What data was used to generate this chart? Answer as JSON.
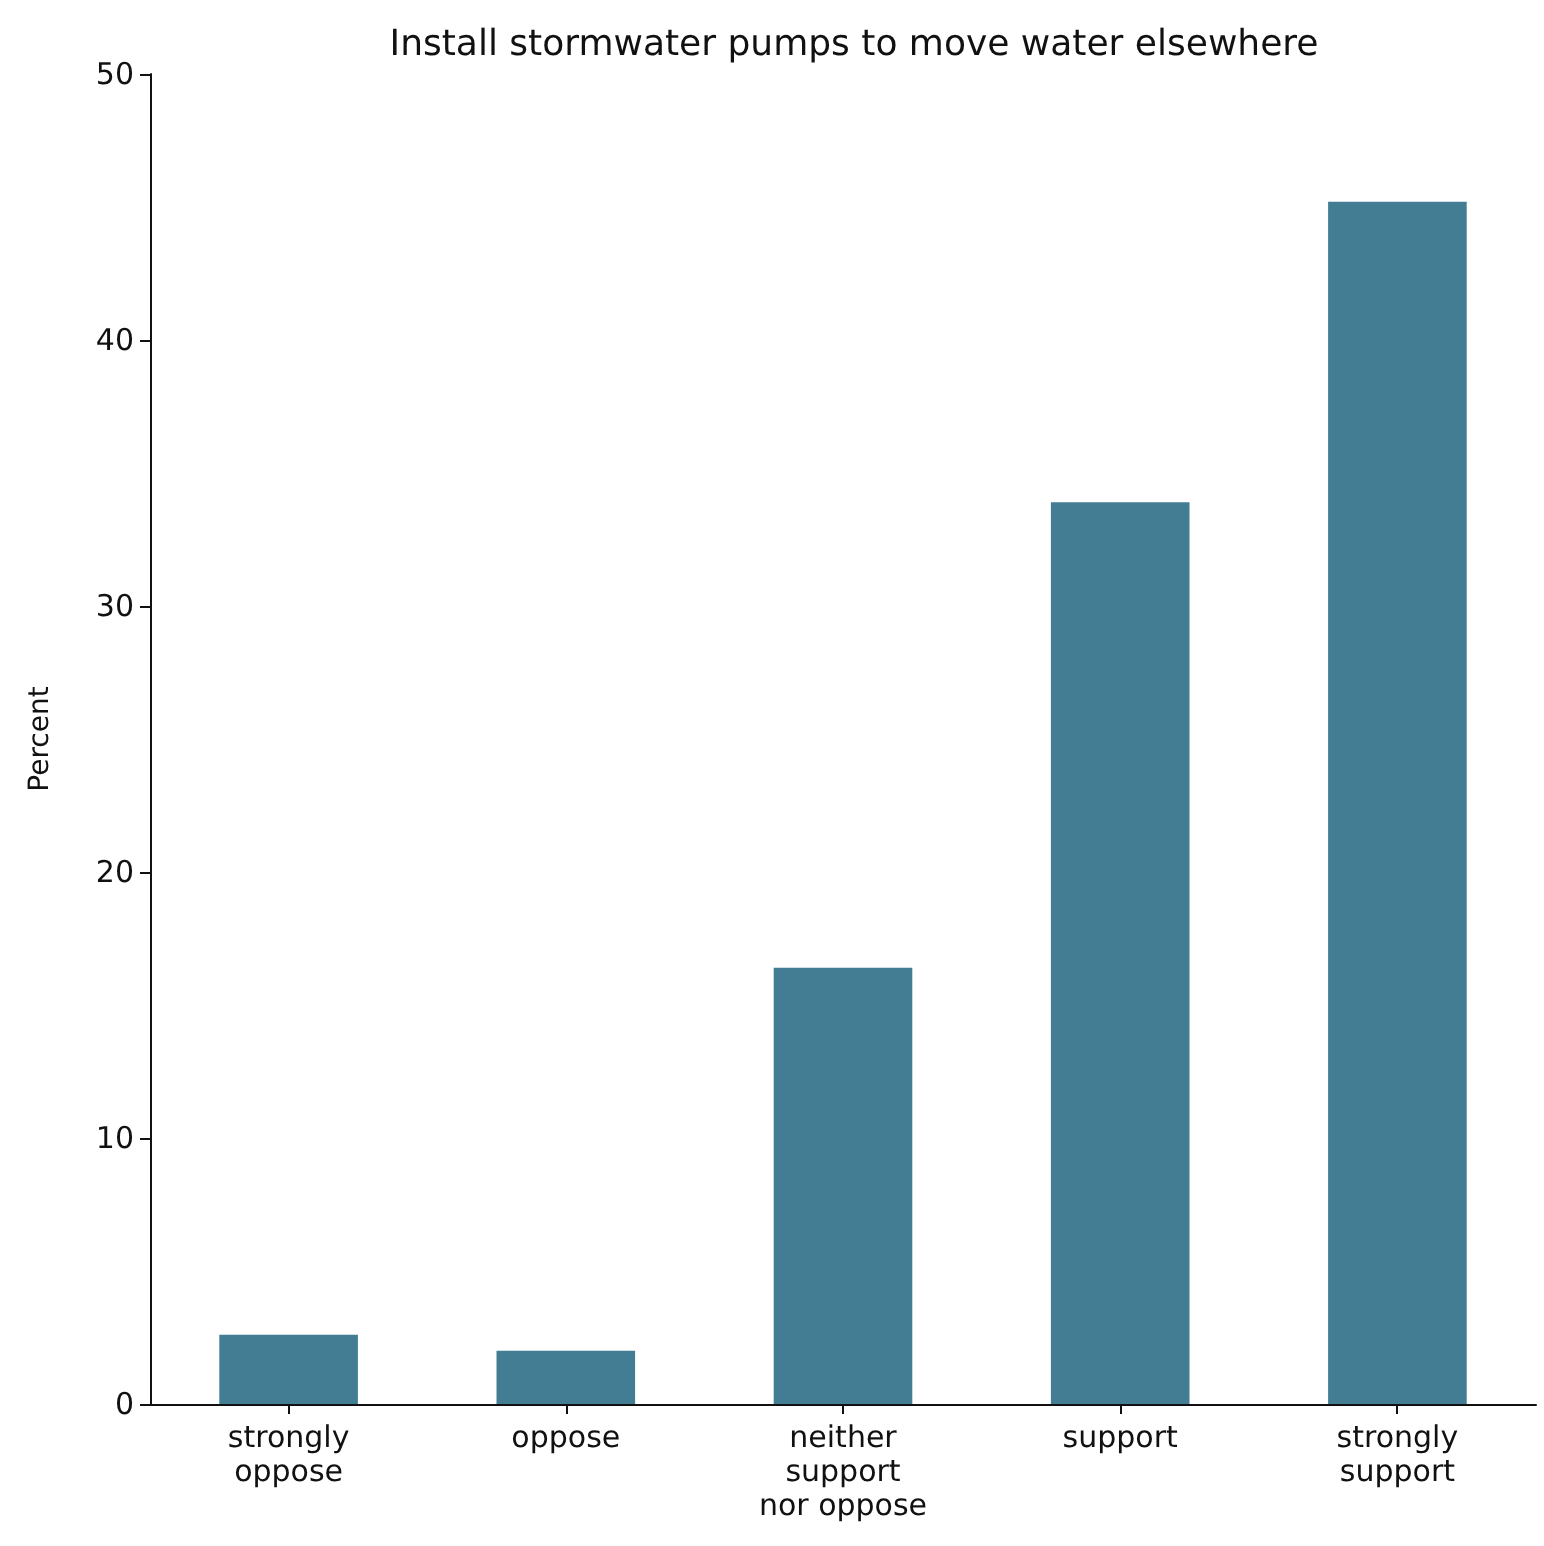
{
  "chart_data": {
    "type": "bar",
    "title": "Install stormwater pumps to move water elsewhere",
    "ylabel": "Percent",
    "categories": [
      "strongly\noppose",
      "oppose",
      "neither\nsupport\nnor oppose",
      "support",
      "strongly\nsupport"
    ],
    "values": [
      2.6,
      2.0,
      16.4,
      33.9,
      45.2
    ],
    "color": "#427d93",
    "ylim": [
      0,
      50
    ],
    "yticks": [
      0,
      10,
      20,
      30,
      40,
      50
    ],
    "grid": false
  }
}
